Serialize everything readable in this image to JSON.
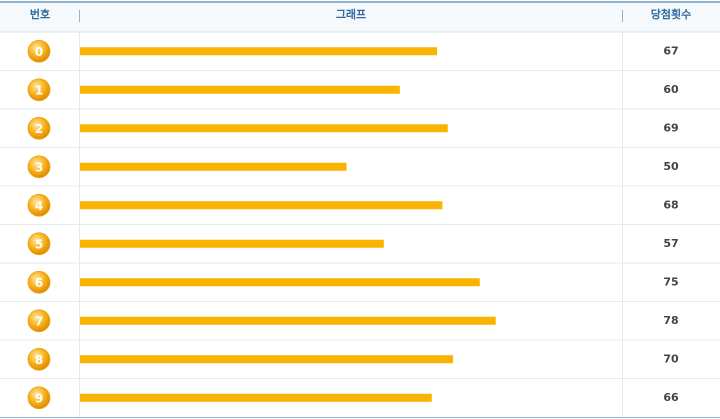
{
  "chart_data": {
    "type": "bar",
    "orientation": "horizontal",
    "columns": [
      "번호",
      "그래프",
      "당첨횟수"
    ],
    "categories": [
      "0",
      "1",
      "2",
      "3",
      "4",
      "5",
      "6",
      "7",
      "8",
      "9"
    ],
    "values": [
      67,
      60,
      69,
      50,
      68,
      57,
      75,
      78,
      70,
      66
    ],
    "color": "#f8b400"
  }
}
